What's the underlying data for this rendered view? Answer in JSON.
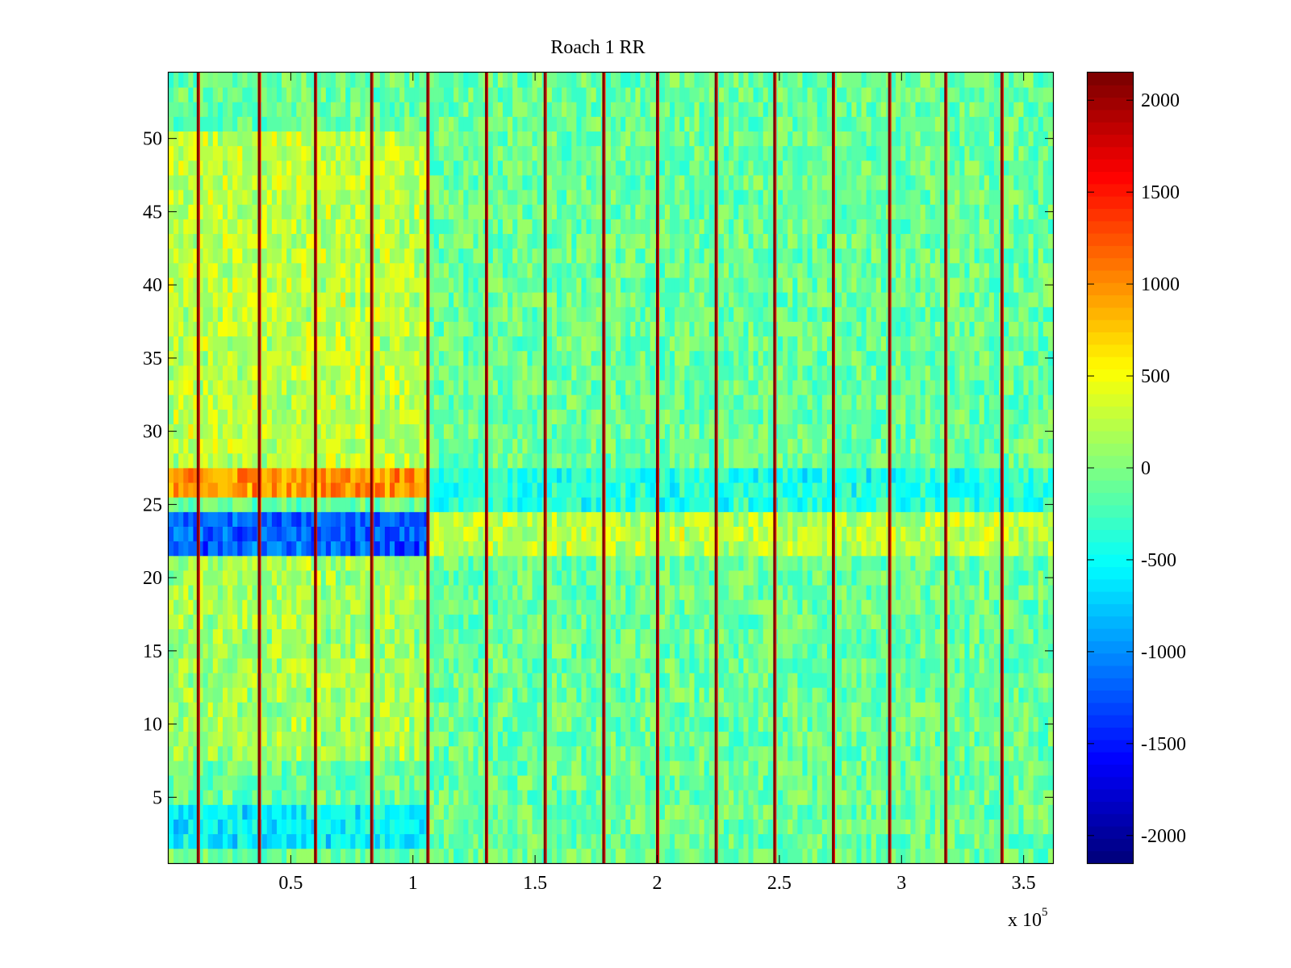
{
  "chart_data": {
    "type": "heatmap",
    "title": "Roach 1 RR",
    "xlabel": "",
    "ylabel": "",
    "x_range": [
      0,
      362000
    ],
    "y_range": [
      0.5,
      54.5
    ],
    "x_ticks": [
      50000,
      100000,
      150000,
      200000,
      250000,
      300000,
      350000
    ],
    "x_tick_labels": [
      "0.5",
      "1",
      "1.5",
      "2",
      "2.5",
      "3",
      "3.5"
    ],
    "x_exponent_label": "x 10",
    "x_exponent_power": "5",
    "y_ticks": [
      5,
      10,
      15,
      20,
      25,
      30,
      35,
      40,
      45,
      50
    ],
    "y_tick_labels": [
      "5",
      "10",
      "15",
      "20",
      "25",
      "30",
      "35",
      "40",
      "45",
      "50"
    ],
    "rows": 54,
    "colormap": "jet",
    "color_range": [
      -2150,
      2150
    ],
    "colorbar_ticks": [
      2000,
      1500,
      1000,
      500,
      0,
      -500,
      -1000,
      -1500,
      -2000
    ],
    "colorbar_tick_labels": [
      "2000",
      "1500",
      "1000",
      "500",
      "0",
      "-500",
      "-1000",
      "-1500",
      "-2000"
    ],
    "baseline_value": -100,
    "noise_amplitude": 280,
    "vertical_artifact_lines_x": [
      12000,
      37000,
      60000,
      83000,
      106000,
      130000,
      154000,
      178000,
      200000,
      224000,
      248000,
      272000,
      295000,
      318000,
      341000
    ],
    "vertical_artifact_value": 2100,
    "row_bands": [
      {
        "rows": [
          26,
          27
        ],
        "x_range": [
          0,
          106000
        ],
        "value": 1100
      },
      {
        "rows": [
          22,
          24
        ],
        "x_range": [
          0,
          106000
        ],
        "value": -1100
      },
      {
        "rows": [
          28,
          50
        ],
        "x_range": [
          0,
          106000
        ],
        "value": 350
      },
      {
        "rows": [
          8,
          21
        ],
        "x_range": [
          0,
          106000
        ],
        "value": 250
      },
      {
        "rows": [
          2,
          4
        ],
        "x_range": [
          0,
          106000
        ],
        "value": -450
      },
      {
        "rows": [
          22,
          24
        ],
        "x_range": [
          106000,
          362000
        ],
        "value": 350
      },
      {
        "rows": [
          25,
          27
        ],
        "x_range": [
          106000,
          362000
        ],
        "value": -300
      }
    ]
  }
}
